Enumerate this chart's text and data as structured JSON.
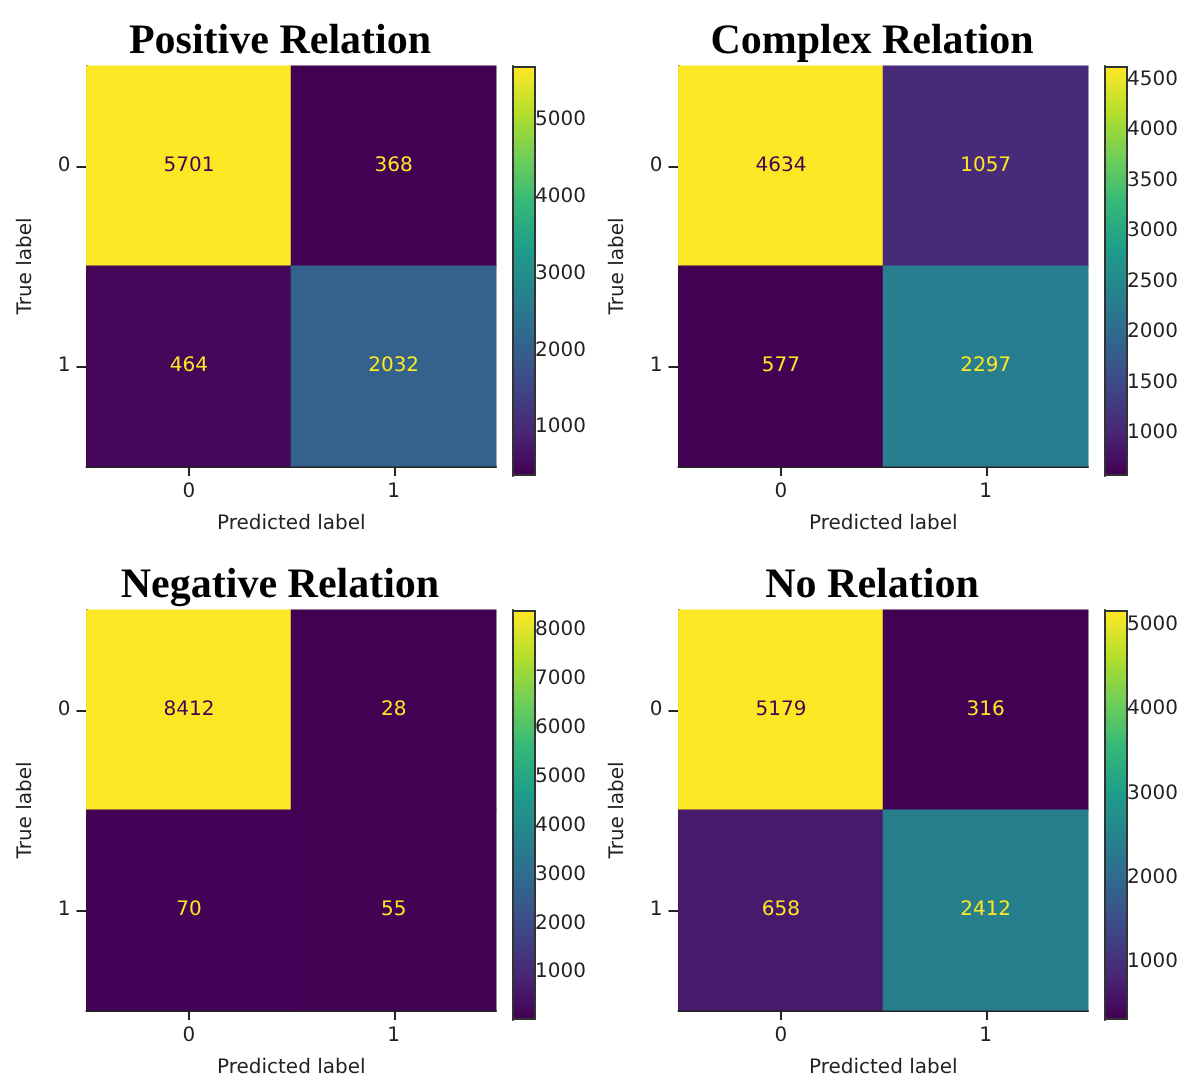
{
  "chart_data": [
    {
      "type": "heatmap",
      "title": "Positive Relation",
      "xlabel": "Predicted label",
      "ylabel": "True label",
      "categories": [
        "0",
        "1"
      ],
      "y_categories": [
        "0",
        "1"
      ],
      "cells": [
        [
          5701,
          368
        ],
        [
          464,
          2032
        ]
      ],
      "clim": [
        368,
        5701
      ],
      "cticks": [
        1000,
        2000,
        3000,
        4000,
        5000
      ],
      "data_labels": true
    },
    {
      "type": "heatmap",
      "title": "Complex Relation",
      "xlabel": "Predicted label",
      "ylabel": "True label",
      "categories": [
        "0",
        "1"
      ],
      "y_categories": [
        "0",
        "1"
      ],
      "cells": [
        [
          4634,
          1057
        ],
        [
          577,
          2297
        ]
      ],
      "clim": [
        577,
        4634
      ],
      "cticks": [
        1000,
        1500,
        2000,
        2500,
        3000,
        3500,
        4000,
        4500
      ],
      "data_labels": true
    },
    {
      "type": "heatmap",
      "title": "Negative Relation",
      "xlabel": "Predicted label",
      "ylabel": "True label",
      "categories": [
        "0",
        "1"
      ],
      "y_categories": [
        "0",
        "1"
      ],
      "cells": [
        [
          8412,
          28
        ],
        [
          70,
          55
        ]
      ],
      "clim": [
        28,
        8412
      ],
      "cticks": [
        1000,
        2000,
        3000,
        4000,
        5000,
        6000,
        7000,
        8000
      ],
      "data_labels": true
    },
    {
      "type": "heatmap",
      "title": "No Relation",
      "xlabel": "Predicted label",
      "ylabel": "True label",
      "categories": [
        "0",
        "1"
      ],
      "y_categories": [
        "0",
        "1"
      ],
      "cells": [
        [
          5179,
          316
        ],
        [
          658,
          2412
        ]
      ],
      "clim": [
        316,
        5179
      ],
      "cticks": [
        1000,
        2000,
        3000,
        4000,
        5000
      ],
      "data_labels": true
    }
  ]
}
